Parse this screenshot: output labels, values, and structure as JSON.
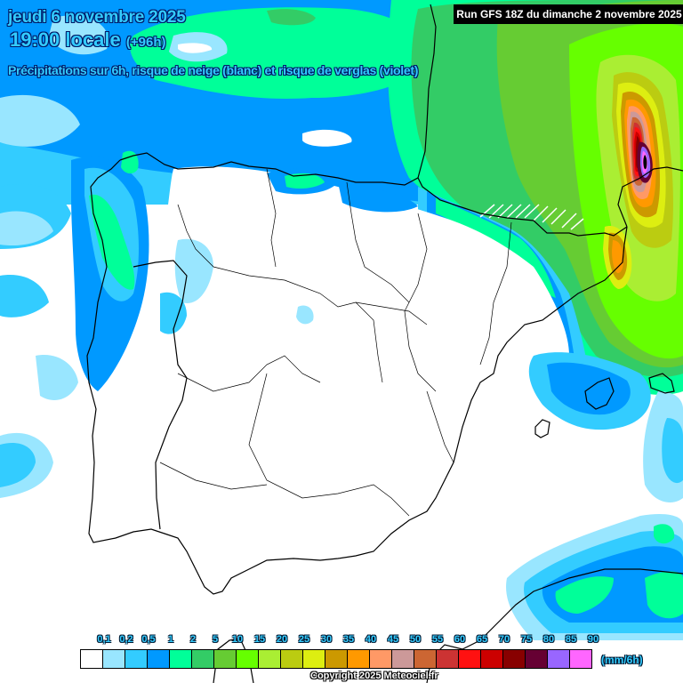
{
  "header": {
    "date": "jeudi 6 novembre 2025",
    "time": "19:00 locale",
    "lead": "(+96h)",
    "subtitle": "Précipitations sur 6h, risque de neige (blanc) et risque de verglas (violet)",
    "run": "Run GFS 18Z du dimanche 2 novembre 2025"
  },
  "legend": {
    "unit": "(mm/6h)",
    "ticks": [
      "0,1",
      "0,2",
      "0,5",
      "1",
      "2",
      "5",
      "10",
      "15",
      "20",
      "25",
      "30",
      "35",
      "40",
      "45",
      "50",
      "55",
      "60",
      "65",
      "70",
      "75",
      "80",
      "85",
      "90"
    ],
    "colors": [
      "#ffffff",
      "#99e6ff",
      "#33ccff",
      "#0099ff",
      "#00ff99",
      "#33cc66",
      "#66cc33",
      "#66ff00",
      "#aaee33",
      "#bbcc11",
      "#ddee11",
      "#cc9900",
      "#ff9900",
      "#ff9966",
      "#cc9999",
      "#cc6633",
      "#cc3333",
      "#ff1111",
      "#cc0000",
      "#880000",
      "#660033",
      "#9966ff",
      "#ff66ff"
    ]
  },
  "footer": {
    "copyright": "Copyright 2025 Meteociel.fr"
  },
  "map": {
    "region": "Iberian Peninsula, Balearic Islands, southern France",
    "precip_max_location": "Gulf of Lion / Hérault coast",
    "snow_risk_area": "Central Pyrenees (white hatching)"
  }
}
